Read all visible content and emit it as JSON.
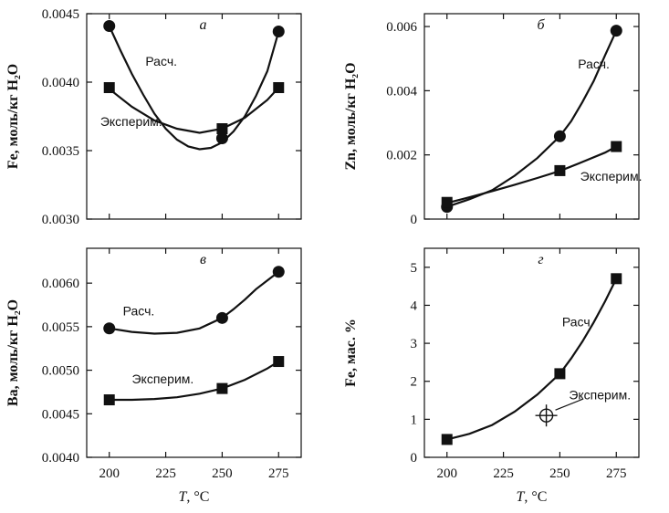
{
  "chart_data": [
    {
      "id": "a",
      "type": "line",
      "title": "а",
      "ylabel": "Fe, моль/кг H₂O",
      "xlabel": "",
      "xlim": [
        190,
        285
      ],
      "ylim": [
        0.003,
        0.0045
      ],
      "xticks": [
        200,
        225,
        250,
        275
      ],
      "xtick_labels": [
        "",
        "",
        "",
        ""
      ],
      "yticks": [
        0.003,
        0.0035,
        0.004,
        0.0045
      ],
      "ytick_labels": [
        "0.0030",
        "0.0035",
        "0.0040",
        "0.0045"
      ],
      "series": [
        {
          "name": "Расч.",
          "marker": "circle",
          "x": [
            200,
            250,
            275
          ],
          "y": [
            0.00441,
            0.00359,
            0.00437
          ],
          "curve_x": [
            200,
            205,
            210,
            215,
            220,
            225,
            230,
            235,
            240,
            245,
            250,
            255,
            260,
            265,
            270,
            275
          ],
          "curve_y": [
            0.00441,
            0.00423,
            0.00406,
            0.00391,
            0.00377,
            0.00366,
            0.00358,
            0.00353,
            0.00351,
            0.00352,
            0.00356,
            0.00364,
            0.00375,
            0.0039,
            0.00408,
            0.00437
          ]
        },
        {
          "name": "Эксперим.",
          "marker": "square",
          "x": [
            200,
            250,
            275
          ],
          "y": [
            0.00396,
            0.00366,
            0.00396
          ],
          "curve_x": [
            200,
            210,
            220,
            230,
            240,
            250,
            260,
            270,
            275
          ],
          "curve_y": [
            0.00395,
            0.00382,
            0.00372,
            0.00366,
            0.00363,
            0.00366,
            0.00374,
            0.00387,
            0.00396
          ]
        }
      ],
      "annotations": [
        {
          "text": "Расч.",
          "x": 216,
          "y": 0.00412
        },
        {
          "text": "Эксперим.",
          "x": 196,
          "y": 0.00368
        }
      ]
    },
    {
      "id": "b",
      "type": "line",
      "title": "б",
      "ylabel": "Zn, моль/кг H₂O",
      "xlabel": "",
      "xlim": [
        190,
        285
      ],
      "ylim": [
        0,
        0.0064
      ],
      "xticks": [
        200,
        225,
        250,
        275
      ],
      "xtick_labels": [
        "",
        "",
        "",
        ""
      ],
      "yticks": [
        0,
        0.002,
        0.004,
        0.006
      ],
      "ytick_labels": [
        "0",
        "0.002",
        "0.004",
        "0.006"
      ],
      "series": [
        {
          "name": "Расч.",
          "marker": "circle",
          "x": [
            200,
            250,
            275
          ],
          "y": [
            0.00038,
            0.00258,
            0.00587
          ],
          "curve_x": [
            200,
            210,
            220,
            230,
            240,
            250,
            255,
            260,
            265,
            270,
            275
          ],
          "curve_y": [
            0.00038,
            0.00062,
            0.0009,
            0.00135,
            0.0019,
            0.00258,
            0.00305,
            0.00365,
            0.0043,
            0.0051,
            0.00587
          ]
        },
        {
          "name": "Эксперим.",
          "marker": "square",
          "x": [
            200,
            250,
            275
          ],
          "y": [
            0.00052,
            0.00151,
            0.00226
          ],
          "curve_x": [
            200,
            210,
            220,
            230,
            240,
            250,
            260,
            270,
            275
          ],
          "curve_y": [
            0.0005,
            0.00068,
            0.00087,
            0.00107,
            0.00128,
            0.0015,
            0.00178,
            0.00207,
            0.00226
          ]
        }
      ],
      "annotations": [
        {
          "text": "Расч.",
          "x": 258,
          "y": 0.0047
        },
        {
          "text": "Эксперим.",
          "x": 259,
          "y": 0.0012
        }
      ]
    },
    {
      "id": "v",
      "type": "line",
      "title": "в",
      "ylabel": "Ba, моль/кг H₂O",
      "xlabel": "T, °C",
      "xlim": [
        190,
        285
      ],
      "ylim": [
        0.004,
        0.0064
      ],
      "xticks": [
        200,
        225,
        250,
        275
      ],
      "xtick_labels": [
        "200",
        "225",
        "250",
        "275"
      ],
      "yticks": [
        0.004,
        0.0045,
        0.005,
        0.0055,
        0.006
      ],
      "ytick_labels": [
        "0.0040",
        "0.0045",
        "0.0050",
        "0.0055",
        "0.0060"
      ],
      "series": [
        {
          "name": "Расч.",
          "marker": "circle",
          "x": [
            200,
            250,
            275
          ],
          "y": [
            0.00548,
            0.0056,
            0.00613
          ],
          "curve_x": [
            200,
            210,
            220,
            230,
            240,
            250,
            255,
            260,
            265,
            270,
            275
          ],
          "curve_y": [
            0.00548,
            0.00544,
            0.00542,
            0.00543,
            0.00548,
            0.0056,
            0.0057,
            0.00581,
            0.00593,
            0.00603,
            0.00613
          ]
        },
        {
          "name": "Эксперим.",
          "marker": "square",
          "x": [
            200,
            250,
            275
          ],
          "y": [
            0.00466,
            0.00479,
            0.0051
          ],
          "curve_x": [
            200,
            210,
            220,
            230,
            240,
            250,
            260,
            270,
            275
          ],
          "curve_y": [
            0.00466,
            0.00466,
            0.00467,
            0.00469,
            0.00473,
            0.00479,
            0.00489,
            0.00502,
            0.0051
          ]
        }
      ],
      "annotations": [
        {
          "text": "Расч.",
          "x": 206,
          "y": 0.00563
        },
        {
          "text": "Эксперим.",
          "x": 210,
          "y": 0.00485
        }
      ]
    },
    {
      "id": "g",
      "type": "line",
      "title": "г",
      "ylabel": "Fe, мас. %",
      "xlabel": "T, °C",
      "xlim": [
        190,
        285
      ],
      "ylim": [
        0,
        5.5
      ],
      "xticks": [
        200,
        225,
        250,
        275
      ],
      "xtick_labels": [
        "200",
        "225",
        "250",
        "275"
      ],
      "yticks": [
        0,
        1,
        2,
        3,
        4,
        5
      ],
      "ytick_labels": [
        "0",
        "1",
        "2",
        "3",
        "4",
        "5"
      ],
      "series": [
        {
          "name": "Расч.",
          "marker": "square",
          "x": [
            200,
            250,
            275
          ],
          "y": [
            0.47,
            2.2,
            4.7
          ],
          "curve_x": [
            200,
            210,
            220,
            230,
            240,
            250,
            255,
            260,
            265,
            270,
            275
          ],
          "curve_y": [
            0.47,
            0.62,
            0.85,
            1.2,
            1.65,
            2.2,
            2.6,
            3.05,
            3.55,
            4.1,
            4.7
          ]
        },
        {
          "name": "Эксперим.",
          "marker": "crosshair",
          "x": [
            244
          ],
          "y": [
            1.1
          ],
          "curve_x": [],
          "curve_y": []
        }
      ],
      "annotations": [
        {
          "text": "Расч.",
          "x": 251,
          "y": 3.45
        },
        {
          "text": "Эксперим.",
          "x": 254,
          "y": 1.52
        }
      ]
    }
  ]
}
